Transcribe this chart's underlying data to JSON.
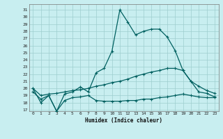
{
  "title": "",
  "xlabel": "Humidex (Indice chaleur)",
  "bg_color": "#c8eef0",
  "grid_color": "#9ecece",
  "line_color": "#006060",
  "xlim": [
    -0.5,
    23.5
  ],
  "ylim": [
    16.8,
    31.8
  ],
  "yticks": [
    17,
    18,
    19,
    20,
    21,
    22,
    23,
    24,
    25,
    26,
    27,
    28,
    29,
    30,
    31
  ],
  "xticks": [
    0,
    1,
    2,
    3,
    4,
    5,
    6,
    7,
    8,
    9,
    10,
    11,
    12,
    13,
    14,
    15,
    16,
    17,
    18,
    19,
    20,
    21,
    22,
    23
  ],
  "line1_x": [
    0,
    1,
    2,
    3,
    4,
    5,
    6,
    7,
    8,
    9,
    10,
    11,
    12,
    13,
    14,
    15,
    16,
    17,
    18,
    19,
    20,
    21,
    22,
    23
  ],
  "line1_y": [
    20.0,
    18.0,
    19.0,
    16.8,
    19.2,
    19.5,
    20.2,
    19.5,
    22.2,
    22.8,
    25.2,
    31.0,
    29.3,
    27.5,
    28.0,
    28.3,
    28.3,
    27.2,
    25.3,
    22.5,
    21.0,
    19.5,
    19.3,
    18.8
  ],
  "line2_x": [
    0,
    1,
    2,
    3,
    4,
    5,
    6,
    7,
    8,
    9,
    10,
    11,
    12,
    13,
    14,
    15,
    16,
    17,
    18,
    19,
    20,
    21,
    22,
    23
  ],
  "line2_y": [
    20.0,
    19.0,
    19.2,
    19.3,
    19.5,
    19.7,
    19.8,
    20.0,
    20.3,
    20.5,
    20.8,
    21.0,
    21.3,
    21.7,
    22.0,
    22.3,
    22.5,
    22.8,
    22.8,
    22.5,
    21.0,
    20.3,
    19.7,
    19.3
  ],
  "line3_x": [
    0,
    1,
    2,
    3,
    4,
    5,
    6,
    7,
    8,
    9,
    10,
    11,
    12,
    13,
    14,
    15,
    16,
    17,
    18,
    19,
    20,
    21,
    22,
    23
  ],
  "line3_y": [
    19.5,
    18.5,
    19.0,
    16.8,
    18.3,
    18.7,
    18.8,
    19.0,
    18.3,
    18.2,
    18.2,
    18.2,
    18.3,
    18.3,
    18.5,
    18.5,
    18.7,
    18.8,
    19.0,
    19.2,
    19.0,
    18.8,
    18.7,
    18.7
  ]
}
